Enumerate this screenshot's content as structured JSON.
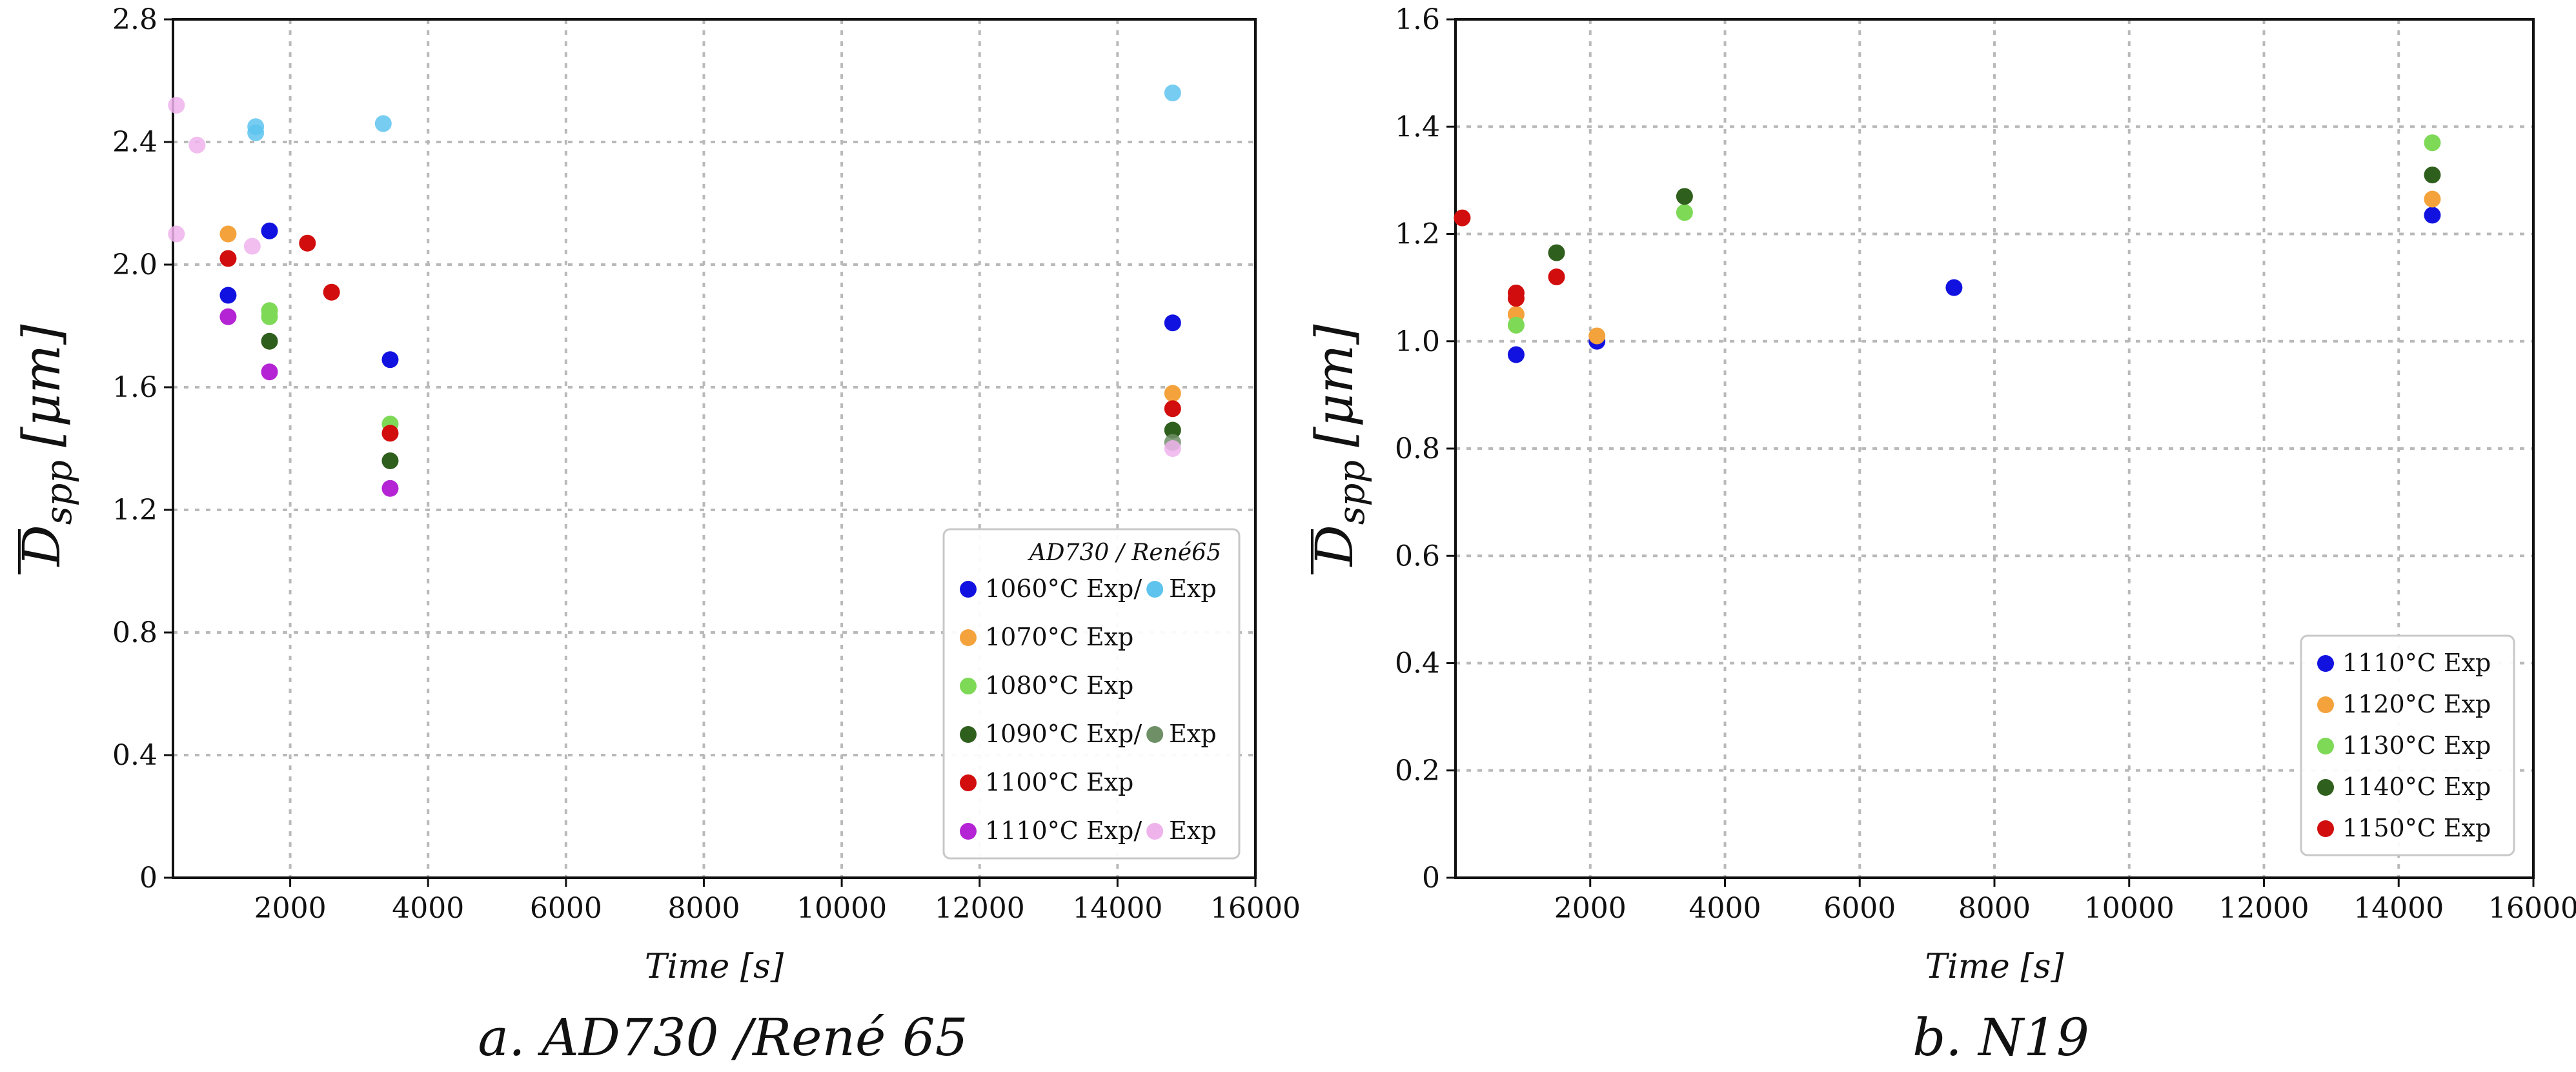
{
  "colors": {
    "blue": "#1212e0",
    "lightblue": "#5ec4ee",
    "orange": "#f4a23c",
    "lightgreen": "#7ed957",
    "darkgreen": "#2f5f1d",
    "grayGreen": "#6f8f67",
    "red": "#d10d0d",
    "purple": "#b424d4",
    "pink": "#efb3ec"
  },
  "chart_data": [
    {
      "type": "scatter",
      "caption": "a. AD730 /René 65",
      "xlabel": "Time [s]",
      "ylabel_main": "D",
      "ylabel_sub": "spp",
      "ylabel_unit": "[μm]",
      "xlim": [
        300,
        16000
      ],
      "ylim": [
        0,
        2.8
      ],
      "grid": true,
      "xticks": [
        2000,
        4000,
        6000,
        8000,
        10000,
        12000,
        14000,
        16000
      ],
      "xtick_labels": [
        "2000",
        "4000",
        "6000",
        "8000",
        "10000",
        "12000",
        "14000",
        "16000"
      ],
      "yticks": [
        0,
        0.4,
        0.8,
        1.2,
        1.6,
        2.0,
        2.4,
        2.8
      ],
      "ytick_labels": [
        "0",
        "0.4",
        "0.8",
        "1.2",
        "1.6",
        "2.0",
        "2.4",
        "2.8"
      ],
      "legend": {
        "position": "lower-right",
        "title": "AD730 / René65",
        "entries": [
          {
            "color": "blue",
            "label": "1060°C Exp/",
            "color2": "lightblue",
            "label2": "Exp"
          },
          {
            "color": "orange",
            "label": "1070°C Exp"
          },
          {
            "color": "lightgreen",
            "label": "1080°C Exp"
          },
          {
            "color": "darkgreen",
            "label": "1090°C Exp/",
            "color2": "grayGreen",
            "label2": "Exp"
          },
          {
            "color": "red",
            "label": "1100°C Exp"
          },
          {
            "color": "purple",
            "label": "1110°C Exp/",
            "color2": "pink",
            "label2": "Exp"
          }
        ]
      },
      "series": [
        {
          "name": "1060°C Exp (AD730)",
          "color": "blue",
          "points": [
            [
              1100,
              1.9
            ],
            [
              1700,
              2.11
            ],
            [
              3450,
              1.69
            ],
            [
              14800,
              1.81
            ]
          ]
        },
        {
          "name": "1060°C Exp (René65)",
          "color": "lightblue",
          "points": [
            [
              1500,
              2.43
            ],
            [
              1500,
              2.45
            ],
            [
              3350,
              2.46
            ],
            [
              14800,
              2.56
            ]
          ]
        },
        {
          "name": "1070°C Exp",
          "color": "orange",
          "points": [
            [
              1100,
              2.1
            ],
            [
              14800,
              1.58
            ]
          ]
        },
        {
          "name": "1080°C Exp",
          "color": "lightgreen",
          "points": [
            [
              1700,
              1.85
            ],
            [
              1700,
              1.83
            ],
            [
              3450,
              1.48
            ]
          ]
        },
        {
          "name": "1090°C Exp (AD730)",
          "color": "darkgreen",
          "points": [
            [
              1700,
              1.75
            ],
            [
              3450,
              1.36
            ],
            [
              14800,
              1.46
            ]
          ]
        },
        {
          "name": "1090°C Exp (René65)",
          "color": "grayGreen",
          "points": [
            [
              14800,
              1.42
            ]
          ]
        },
        {
          "name": "1100°C Exp",
          "color": "red",
          "points": [
            [
              1100,
              2.02
            ],
            [
              2250,
              2.07
            ],
            [
              2600,
              1.91
            ],
            [
              3450,
              1.45
            ],
            [
              14800,
              1.53
            ]
          ]
        },
        {
          "name": "1110°C Exp (AD730)",
          "color": "purple",
          "points": [
            [
              1100,
              1.83
            ],
            [
              1700,
              1.65
            ],
            [
              3450,
              1.27
            ]
          ]
        },
        {
          "name": "1110°C Exp (René65)",
          "color": "pink",
          "points": [
            [
              350,
              2.52
            ],
            [
              350,
              2.1
            ],
            [
              650,
              2.39
            ],
            [
              1450,
              2.06
            ],
            [
              14800,
              1.4
            ]
          ]
        }
      ]
    },
    {
      "type": "scatter",
      "caption": "b. N19",
      "xlabel": "Time [s]",
      "ylabel_main": "D",
      "ylabel_sub": "spp",
      "ylabel_unit": "[μm]",
      "xlim": [
        0,
        16000
      ],
      "ylim": [
        0,
        1.6
      ],
      "grid": true,
      "xticks": [
        2000,
        4000,
        6000,
        8000,
        10000,
        12000,
        14000,
        16000
      ],
      "xtick_labels": [
        "2000",
        "4000",
        "6000",
        "8000",
        "10000",
        "12000",
        "14000",
        "16000"
      ],
      "yticks": [
        0,
        0.2,
        0.4,
        0.6,
        0.8,
        1.0,
        1.2,
        1.4,
        1.6
      ],
      "ytick_labels": [
        "0",
        "0.2",
        "0.4",
        "0.6",
        "0.8",
        "1.0",
        "1.2",
        "1.4",
        "1.6"
      ],
      "legend": {
        "position": "lower-right",
        "title": "",
        "entries": [
          {
            "color": "blue",
            "label": "1110°C Exp"
          },
          {
            "color": "orange",
            "label": "1120°C Exp"
          },
          {
            "color": "lightgreen",
            "label": "1130°C Exp"
          },
          {
            "color": "darkgreen",
            "label": "1140°C Exp"
          },
          {
            "color": "red",
            "label": "1150°C Exp"
          }
        ]
      },
      "series": [
        {
          "name": "1110°C Exp",
          "color": "blue",
          "points": [
            [
              900,
              0.975
            ],
            [
              2100,
              1.0
            ],
            [
              7400,
              1.1
            ],
            [
              14500,
              1.235
            ]
          ]
        },
        {
          "name": "1120°C Exp",
          "color": "orange",
          "points": [
            [
              900,
              1.05
            ],
            [
              2100,
              1.01
            ],
            [
              14500,
              1.265
            ]
          ]
        },
        {
          "name": "1130°C Exp",
          "color": "lightgreen",
          "points": [
            [
              900,
              1.03
            ],
            [
              3400,
              1.24
            ],
            [
              14500,
              1.37
            ]
          ]
        },
        {
          "name": "1140°C Exp",
          "color": "darkgreen",
          "points": [
            [
              1500,
              1.165
            ],
            [
              3400,
              1.27
            ],
            [
              14500,
              1.31
            ]
          ]
        },
        {
          "name": "1150°C Exp",
          "color": "red",
          "points": [
            [
              100,
              1.23
            ],
            [
              900,
              1.08
            ],
            [
              900,
              1.09
            ],
            [
              1500,
              1.12
            ]
          ]
        }
      ]
    }
  ]
}
